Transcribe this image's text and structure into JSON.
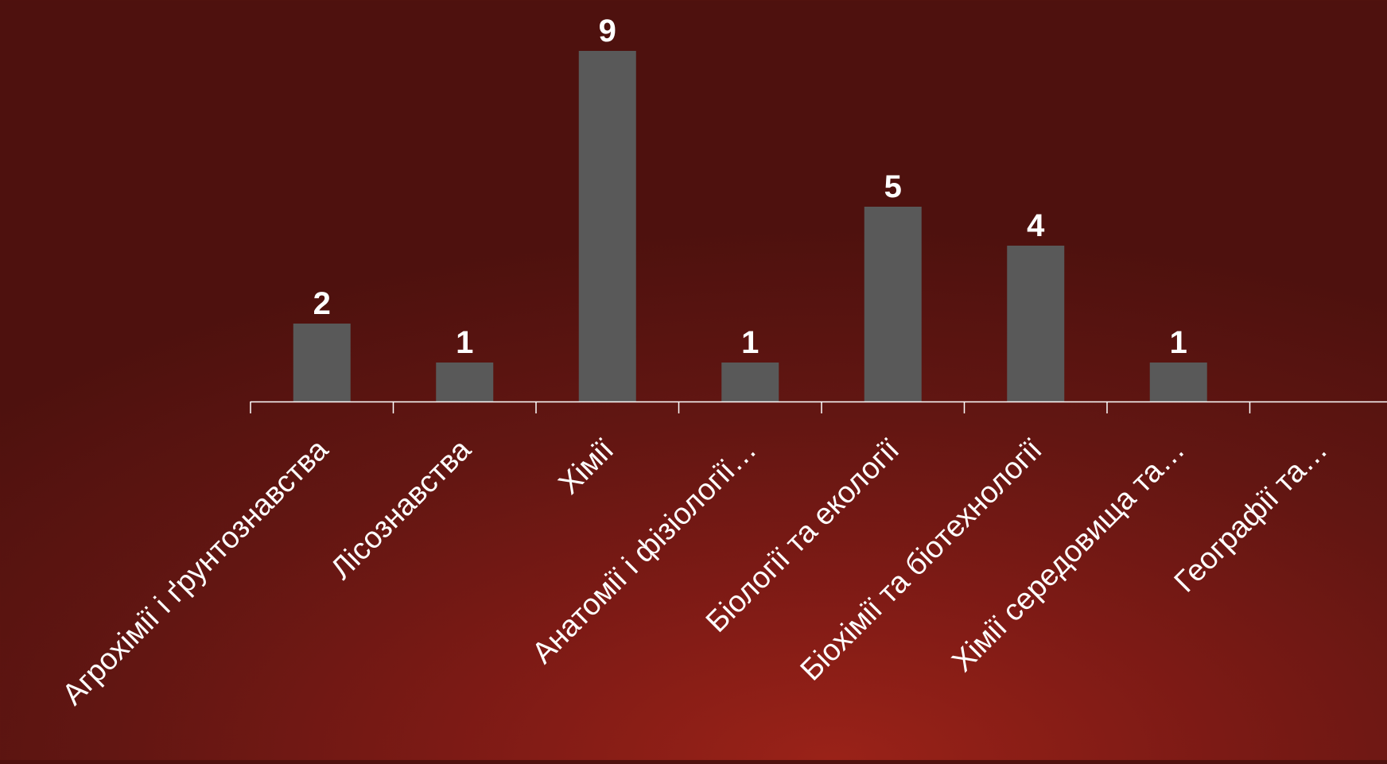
{
  "chart_data": {
    "type": "bar",
    "title": "",
    "xlabel": "",
    "ylabel": "",
    "categories": [
      "Агрохімії і ґрунтознавства",
      "Лісознавства",
      "Хімії",
      "Анатомії і фізіології…",
      "Біології та екології",
      "Біохімії та біотехнології",
      "Хімії середовища та…",
      "Географії та…"
    ],
    "values": [
      2,
      1,
      9,
      1,
      5,
      4,
      1,
      null
    ],
    "data_labels": [
      "2",
      "1",
      "9",
      "1",
      "5",
      "4",
      "1",
      ""
    ],
    "ylim": [
      0,
      9
    ],
    "grid": false,
    "legend": "none",
    "colors": {
      "bar": "#595959",
      "axis": "#ffffff",
      "text": "#ffffff"
    }
  }
}
